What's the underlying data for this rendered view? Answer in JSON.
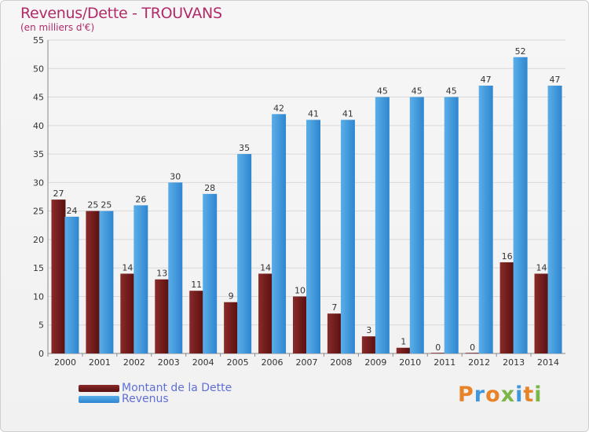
{
  "title": "Revenus/Dette - TROUVANS",
  "subtitle": "(en milliers d'€)",
  "colors": {
    "dette": "#6e1c1c",
    "revenus": "#3f97dd",
    "title": "#b12a6a",
    "legend_text": "#5f6fd6"
  },
  "legend": {
    "items": [
      {
        "label": "Montant de la Dette",
        "color": "#6e1c1c"
      },
      {
        "label": "Revenus",
        "color": "#3f97dd"
      }
    ]
  },
  "logo": {
    "text": "Proxiti"
  },
  "chart_data": {
    "type": "bar",
    "title": "Revenus/Dette - TROUVANS",
    "subtitle": "(en milliers d'€)",
    "xlabel": "",
    "ylabel": "",
    "categories": [
      "2000",
      "2001",
      "2002",
      "2003",
      "2004",
      "2005",
      "2006",
      "2007",
      "2008",
      "2009",
      "2010",
      "2011",
      "2012",
      "2013",
      "2014"
    ],
    "series": [
      {
        "name": "Montant de la Dette",
        "values": [
          27,
          25,
          14,
          13,
          11,
          9,
          14,
          10,
          7,
          3,
          1,
          0,
          0,
          16,
          14
        ]
      },
      {
        "name": "Revenus",
        "values": [
          24,
          25,
          26,
          30,
          28,
          35,
          42,
          41,
          41,
          45,
          45,
          45,
          47,
          52,
          47
        ]
      }
    ],
    "ylim": [
      0,
      55
    ],
    "yticks": [
      0,
      5,
      10,
      15,
      20,
      25,
      30,
      35,
      40,
      45,
      50,
      55
    ],
    "grid": true,
    "legend_position": "bottom-left"
  }
}
